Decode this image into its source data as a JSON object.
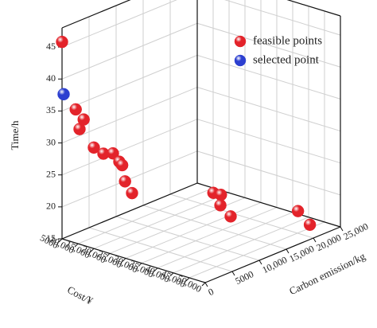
{
  "chart_data": {
    "type": "scatter3d",
    "xlabel": "Cost/¥",
    "ylabel": "Carbon emission/kg",
    "zlabel": "Time/h",
    "xlim": [
      5000,
      50000
    ],
    "ylim": [
      0,
      25000
    ],
    "zlim": [
      15,
      48
    ],
    "xticks": [
      5000,
      {
        "value": 10000,
        "label": "10,000"
      },
      {
        "value": 15000,
        "label": "15,000"
      },
      {
        "value": 20000,
        "label": "20,000"
      },
      {
        "value": 25000,
        "label": "25,000"
      },
      {
        "value": 30000,
        "label": "30,000"
      },
      {
        "value": 35000,
        "label": "35,000"
      },
      {
        "value": 40000,
        "label": "40,000"
      },
      {
        "value": 45000,
        "label": "45,000"
      },
      {
        "value": 50000,
        "label": "50,000"
      }
    ],
    "yticks": [
      0,
      5000,
      {
        "value": 10000,
        "label": "10,000"
      },
      {
        "value": 15000,
        "label": "15,000"
      },
      {
        "value": 20000,
        "label": "20,000"
      },
      {
        "value": 25000,
        "label": "25,000"
      }
    ],
    "zticks": [
      15,
      20,
      25,
      30,
      35,
      40,
      45
    ],
    "grid": true,
    "legend": "upper right",
    "series": [
      {
        "name": "feasible points",
        "color": "#e3232a",
        "x": [
          5000,
          9300,
          11800,
          10500,
          15000,
          18000,
          21000,
          23000,
          23900,
          24800,
          27000,
          41000,
          41000,
          41000,
          41000,
          45500,
          45500
        ],
        "y": [
          0,
          0,
          0,
          0,
          0,
          0,
          0,
          0,
          0,
          0,
          0,
          6800,
          8200,
          8100,
          10000,
          19800,
          22000
        ],
        "z": [
          45.8,
          35.9,
          34.7,
          33.0,
          30.8,
          30.3,
          30.8,
          29.8,
          29.4,
          27.0,
          25.5,
          25.3,
          24.5,
          22.9,
          20.5,
          18.6,
          15.7
        ]
      },
      {
        "name": "selected point",
        "color": "#2c3fd0",
        "x": [
          5500
        ],
        "y": [
          0
        ],
        "z": [
          37.7
        ]
      }
    ]
  }
}
